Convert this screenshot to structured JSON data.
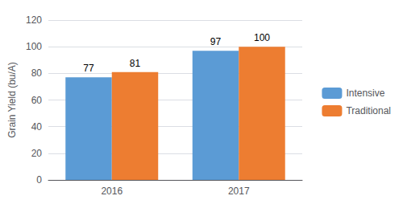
{
  "chart_data": {
    "type": "bar",
    "ylabel": "Grain Yield (bu/A)",
    "categories": [
      "2016",
      "2017"
    ],
    "series": [
      {
        "name": "Intensive",
        "color": "#5b9bd5",
        "values": [
          77,
          97
        ]
      },
      {
        "name": "Traditional",
        "color": "#ed7d31",
        "values": [
          81,
          100
        ]
      }
    ],
    "ylim": [
      0,
      120
    ],
    "yticks": [
      0,
      20,
      40,
      60,
      80,
      100,
      120
    ],
    "grid": true,
    "legend": "right",
    "data_labels": true
  }
}
